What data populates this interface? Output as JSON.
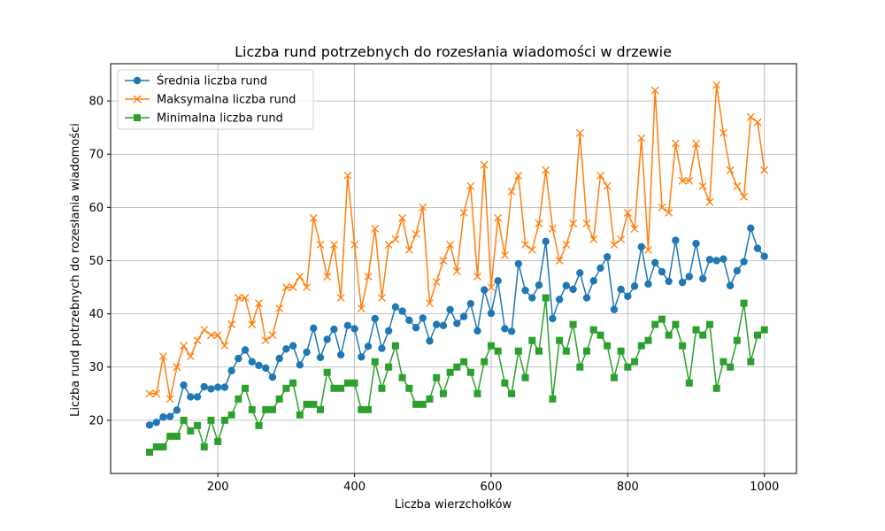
{
  "chart_data": {
    "type": "line",
    "title": "Liczba rund potrzebnych do rozesłania wiadomości w drzewie",
    "xlabel": "Liczba wierzchołków",
    "ylabel": "Liczba rund potrzebnych do rozesłania wiadomości",
    "xlim": [
      43,
      1047
    ],
    "ylim": [
      10,
      87
    ],
    "xticks": [
      200,
      400,
      600,
      800,
      1000
    ],
    "yticks": [
      20,
      30,
      40,
      50,
      60,
      70,
      80
    ],
    "grid": true,
    "legend_position": "top-left",
    "x": [
      100,
      110,
      120,
      130,
      140,
      150,
      160,
      170,
      180,
      190,
      200,
      210,
      220,
      230,
      240,
      250,
      260,
      270,
      280,
      290,
      300,
      310,
      320,
      330,
      340,
      350,
      360,
      370,
      380,
      390,
      400,
      410,
      420,
      430,
      440,
      450,
      460,
      470,
      480,
      490,
      500,
      510,
      520,
      530,
      540,
      550,
      560,
      570,
      580,
      590,
      600,
      610,
      620,
      630,
      640,
      650,
      660,
      670,
      680,
      690,
      700,
      710,
      720,
      730,
      740,
      750,
      760,
      770,
      780,
      790,
      800,
      810,
      820,
      830,
      840,
      850,
      860,
      870,
      880,
      890,
      900,
      910,
      920,
      930,
      940,
      950,
      960,
      970,
      980,
      990,
      1000
    ],
    "series": [
      {
        "name": "Średnia liczba rund",
        "color": "#1f77b4",
        "marker": "circle",
        "values": [
          19.1,
          19.6,
          20.6,
          20.7,
          21.9,
          26.6,
          24.4,
          24.4,
          26.3,
          25.9,
          26.2,
          26.2,
          29.3,
          31.6,
          33.2,
          31.0,
          30.3,
          29.8,
          28.1,
          31.6,
          33.4,
          34.0,
          30.4,
          32.8,
          37.3,
          31.8,
          35.2,
          37.1,
          32.3,
          37.8,
          37.2,
          31.9,
          33.9,
          39.1,
          33.5,
          36.8,
          41.3,
          40.5,
          38.8,
          37.4,
          39.2,
          34.9,
          38.0,
          37.8,
          40.8,
          38.2,
          39.5,
          41.9,
          36.8,
          44.5,
          40.1,
          46.2,
          37.2,
          36.7,
          49.4,
          44.4,
          43.0,
          45.4,
          53.6,
          39.1,
          42.7,
          45.3,
          44.6,
          47.7,
          43.0,
          46.2,
          48.6,
          50.7,
          40.8,
          44.6,
          43.3,
          45.2,
          52.6,
          45.6,
          49.6,
          47.9,
          46.1,
          53.8,
          45.9,
          47.0,
          53.2,
          46.6,
          50.2,
          50.0,
          50.3,
          45.3,
          48.1,
          49.8,
          56.1,
          52.3,
          50.8
        ]
      },
      {
        "name": "Maksymalna liczba rund",
        "color": "#ff7f0e",
        "marker": "x",
        "values": [
          25,
          25,
          32,
          24,
          30,
          34,
          32,
          35,
          37,
          36,
          36,
          34,
          38,
          43,
          43,
          38,
          42,
          35,
          36,
          41,
          45,
          45,
          47,
          45,
          58,
          53,
          47,
          53,
          43,
          66,
          53,
          41,
          47,
          56,
          43,
          53,
          54,
          58,
          52,
          55,
          60,
          42,
          46,
          50,
          53,
          48,
          59,
          64,
          47,
          68,
          45,
          58,
          51,
          63,
          66,
          53,
          52,
          57,
          67,
          56,
          50,
          53,
          57,
          74,
          57,
          54,
          66,
          64,
          53,
          54,
          59,
          56,
          73,
          52,
          82,
          60,
          59,
          72,
          65,
          65,
          72,
          64,
          61,
          83,
          74,
          67,
          64,
          62,
          77,
          76,
          67
        ]
      },
      {
        "name": "Minimalna liczba rund",
        "color": "#2ca02c",
        "marker": "square",
        "values": [
          14,
          15,
          15,
          17,
          17,
          20,
          18,
          19,
          15,
          20,
          16,
          20,
          21,
          24,
          26,
          22,
          19,
          22,
          22,
          24,
          26,
          27,
          21,
          23,
          23,
          22,
          29,
          26,
          26,
          27,
          27,
          22,
          22,
          31,
          26,
          30,
          34,
          28,
          26,
          23,
          23,
          24,
          28,
          25,
          29,
          30,
          31,
          29,
          25,
          31,
          34,
          33,
          27,
          25,
          33,
          28,
          35,
          33,
          43,
          24,
          35,
          33,
          38,
          30,
          33,
          37,
          36,
          34,
          28,
          33,
          30,
          31,
          34,
          35,
          38,
          39,
          36,
          38,
          34,
          27,
          37,
          36,
          38,
          26,
          31,
          30,
          35,
          42,
          31,
          36,
          37
        ]
      }
    ]
  }
}
